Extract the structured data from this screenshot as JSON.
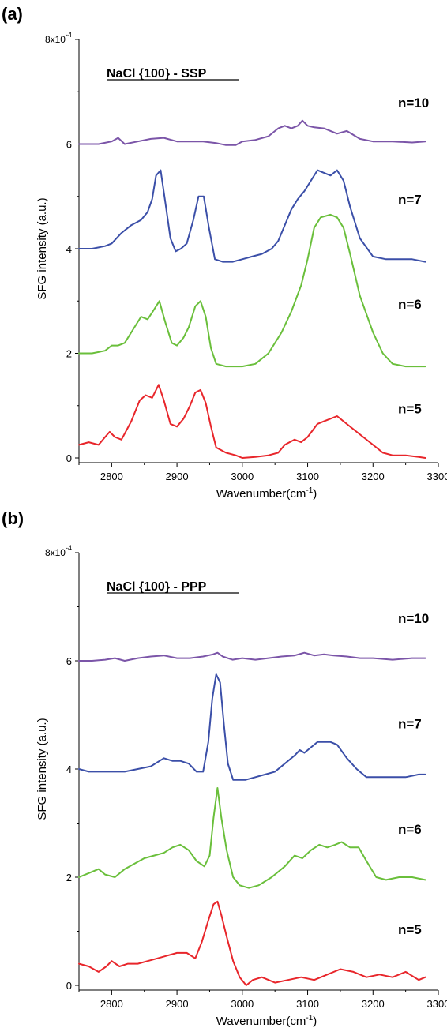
{
  "chart_data": [
    {
      "panel_label": "(a)",
      "title": "NaCl {100} - SSP",
      "type": "line",
      "xlabel_base": "Wavenumber(cm",
      "xlabel_sup": "-1",
      "xlabel_end": ")",
      "ylabel": "SFG intensity (a.u.)",
      "xlim": [
        2750,
        3300
      ],
      "ylim": [
        0,
        8
      ],
      "y_multiplier_label": "8x10",
      "y_multiplier_exp": "-4",
      "xticks": [
        2800,
        2900,
        3000,
        3100,
        3200,
        3300
      ],
      "yticks": [
        0,
        2,
        4,
        6
      ],
      "series": [
        {
          "name": "n=5",
          "color": "#e8262b",
          "x": [
            2750,
            2765,
            2780,
            2790,
            2797,
            2805,
            2815,
            2830,
            2843,
            2852,
            2862,
            2872,
            2880,
            2890,
            2900,
            2910,
            2920,
            2928,
            2936,
            2944,
            2952,
            2960,
            2975,
            2990,
            3000,
            3020,
            3040,
            3055,
            3065,
            3080,
            3090,
            3100,
            3115,
            3125,
            3135,
            3145,
            3155,
            3170,
            3185,
            3200,
            3215,
            3230,
            3250,
            3270,
            3280
          ],
          "y": [
            0.25,
            0.3,
            0.25,
            0.4,
            0.5,
            0.4,
            0.35,
            0.7,
            1.1,
            1.2,
            1.15,
            1.4,
            1.1,
            0.65,
            0.6,
            0.75,
            1.0,
            1.25,
            1.3,
            1.05,
            0.6,
            0.2,
            0.1,
            0.05,
            0.0,
            0.02,
            0.05,
            0.1,
            0.25,
            0.35,
            0.3,
            0.4,
            0.65,
            0.7,
            0.75,
            0.8,
            0.7,
            0.55,
            0.4,
            0.25,
            0.1,
            0.05,
            0.05,
            0.02,
            0.0
          ]
        },
        {
          "name": "n=6",
          "color": "#6abf3b",
          "x": [
            2750,
            2770,
            2790,
            2800,
            2810,
            2820,
            2830,
            2845,
            2855,
            2863,
            2873,
            2882,
            2892,
            2900,
            2910,
            2918,
            2928,
            2936,
            2944,
            2952,
            2960,
            2975,
            3000,
            3020,
            3040,
            3060,
            3075,
            3090,
            3100,
            3110,
            3120,
            3135,
            3145,
            3155,
            3165,
            3180,
            3200,
            3215,
            3230,
            3250,
            3265,
            3280
          ],
          "y": [
            2.0,
            2.0,
            2.05,
            2.15,
            2.15,
            2.2,
            2.4,
            2.7,
            2.65,
            2.8,
            3.0,
            2.6,
            2.2,
            2.15,
            2.3,
            2.5,
            2.9,
            3.0,
            2.7,
            2.1,
            1.8,
            1.75,
            1.75,
            1.8,
            2.0,
            2.4,
            2.8,
            3.3,
            3.8,
            4.4,
            4.6,
            4.65,
            4.6,
            4.4,
            3.9,
            3.1,
            2.4,
            2.0,
            1.8,
            1.75,
            1.75,
            1.75
          ]
        },
        {
          "name": "n=7",
          "color": "#3b4fa8",
          "x": [
            2750,
            2770,
            2790,
            2800,
            2815,
            2830,
            2845,
            2855,
            2862,
            2868,
            2875,
            2882,
            2890,
            2898,
            2906,
            2915,
            2925,
            2933,
            2941,
            2949,
            2958,
            2970,
            2985,
            3000,
            3015,
            3030,
            3045,
            3055,
            3065,
            3075,
            3085,
            3095,
            3105,
            3115,
            3125,
            3135,
            3145,
            3155,
            3165,
            3180,
            3200,
            3220,
            3240,
            3260,
            3280
          ],
          "y": [
            4.0,
            4.0,
            4.05,
            4.1,
            4.3,
            4.45,
            4.55,
            4.7,
            4.95,
            5.4,
            5.5,
            4.9,
            4.2,
            3.95,
            4.0,
            4.1,
            4.55,
            5.0,
            5.0,
            4.4,
            3.8,
            3.75,
            3.75,
            3.8,
            3.85,
            3.9,
            4.0,
            4.15,
            4.45,
            4.75,
            4.95,
            5.1,
            5.3,
            5.5,
            5.45,
            5.4,
            5.5,
            5.3,
            4.8,
            4.2,
            3.85,
            3.8,
            3.8,
            3.8,
            3.75
          ]
        },
        {
          "name": "n=10",
          "color": "#7b55a8",
          "x": [
            2750,
            2780,
            2800,
            2810,
            2820,
            2840,
            2860,
            2880,
            2900,
            2920,
            2940,
            2960,
            2975,
            2990,
            3000,
            3020,
            3040,
            3055,
            3065,
            3075,
            3085,
            3092,
            3100,
            3110,
            3125,
            3135,
            3145,
            3160,
            3180,
            3200,
            3230,
            3260,
            3280
          ],
          "y": [
            6.0,
            6.0,
            6.05,
            6.12,
            6.0,
            6.05,
            6.1,
            6.12,
            6.05,
            6.05,
            6.05,
            6.02,
            5.98,
            5.98,
            6.05,
            6.08,
            6.15,
            6.3,
            6.35,
            6.3,
            6.35,
            6.45,
            6.35,
            6.32,
            6.3,
            6.25,
            6.2,
            6.25,
            6.1,
            6.05,
            6.05,
            6.03,
            6.05
          ]
        }
      ]
    },
    {
      "panel_label": "(b)",
      "title": "NaCl {100} - PPP",
      "type": "line",
      "xlabel_base": "Wavenumber(cm",
      "xlabel_sup": "-1",
      "xlabel_end": ")",
      "ylabel": "SFG intensity (a.u.)",
      "xlim": [
        2750,
        3300
      ],
      "ylim": [
        0,
        8
      ],
      "y_multiplier_label": "8x10",
      "y_multiplier_exp": "-4",
      "xticks": [
        2800,
        2900,
        3000,
        3100,
        3200,
        3300
      ],
      "yticks": [
        0,
        2,
        4,
        6
      ],
      "series": [
        {
          "name": "n=5",
          "color": "#e8262b",
          "x": [
            2750,
            2765,
            2780,
            2792,
            2800,
            2812,
            2825,
            2840,
            2855,
            2870,
            2885,
            2900,
            2915,
            2928,
            2938,
            2948,
            2956,
            2962,
            2968,
            2976,
            2986,
            2996,
            3006,
            3016,
            3030,
            3050,
            3070,
            3090,
            3110,
            3130,
            3150,
            3170,
            3190,
            3210,
            3230,
            3250,
            3270,
            3280
          ],
          "y": [
            0.4,
            0.35,
            0.25,
            0.35,
            0.45,
            0.35,
            0.4,
            0.4,
            0.45,
            0.5,
            0.55,
            0.6,
            0.6,
            0.5,
            0.8,
            1.2,
            1.5,
            1.55,
            1.3,
            0.9,
            0.45,
            0.15,
            0.0,
            0.1,
            0.15,
            0.05,
            0.1,
            0.15,
            0.1,
            0.2,
            0.3,
            0.25,
            0.15,
            0.2,
            0.15,
            0.25,
            0.1,
            0.15
          ]
        },
        {
          "name": "n=6",
          "color": "#6abf3b",
          "x": [
            2750,
            2760,
            2770,
            2780,
            2790,
            2805,
            2820,
            2835,
            2850,
            2865,
            2880,
            2893,
            2905,
            2918,
            2930,
            2942,
            2950,
            2956,
            2962,
            2968,
            2976,
            2986,
            2996,
            3010,
            3025,
            3045,
            3065,
            3080,
            3092,
            3105,
            3118,
            3130,
            3142,
            3152,
            3165,
            3178,
            3190,
            3205,
            3220,
            3240,
            3260,
            3280
          ],
          "y": [
            2.0,
            2.05,
            2.1,
            2.15,
            2.05,
            2.0,
            2.15,
            2.25,
            2.35,
            2.4,
            2.45,
            2.55,
            2.6,
            2.5,
            2.3,
            2.2,
            2.4,
            3.1,
            3.65,
            3.1,
            2.5,
            2.0,
            1.85,
            1.8,
            1.85,
            2.0,
            2.2,
            2.4,
            2.35,
            2.5,
            2.6,
            2.55,
            2.6,
            2.65,
            2.55,
            2.55,
            2.3,
            2.0,
            1.95,
            2.0,
            2.0,
            1.95
          ]
        },
        {
          "name": "n=7",
          "color": "#3b4fa8",
          "x": [
            2750,
            2765,
            2780,
            2800,
            2820,
            2840,
            2860,
            2880,
            2893,
            2905,
            2918,
            2930,
            2940,
            2948,
            2954,
            2960,
            2966,
            2972,
            2978,
            2986,
            2994,
            3005,
            3020,
            3035,
            3050,
            3065,
            3080,
            3088,
            3095,
            3105,
            3115,
            3125,
            3135,
            3145,
            3160,
            3175,
            3190,
            3210,
            3230,
            3250,
            3270,
            3280
          ],
          "y": [
            4.0,
            3.95,
            3.95,
            3.95,
            3.95,
            4.0,
            4.05,
            4.2,
            4.15,
            4.15,
            4.1,
            3.95,
            3.95,
            4.5,
            5.3,
            5.75,
            5.6,
            4.8,
            4.1,
            3.8,
            3.8,
            3.8,
            3.85,
            3.9,
            3.95,
            4.1,
            4.25,
            4.35,
            4.3,
            4.4,
            4.5,
            4.5,
            4.5,
            4.45,
            4.2,
            4.0,
            3.85,
            3.85,
            3.85,
            3.85,
            3.9,
            3.9
          ]
        },
        {
          "name": "n=10",
          "color": "#7b55a8",
          "x": [
            2750,
            2770,
            2790,
            2805,
            2820,
            2840,
            2860,
            2880,
            2900,
            2920,
            2940,
            2955,
            2962,
            2970,
            2985,
            3000,
            3020,
            3040,
            3060,
            3080,
            3095,
            3110,
            3125,
            3140,
            3160,
            3180,
            3200,
            3230,
            3260,
            3280
          ],
          "y": [
            6.0,
            6.0,
            6.02,
            6.05,
            6.0,
            6.05,
            6.08,
            6.1,
            6.05,
            6.05,
            6.08,
            6.12,
            6.15,
            6.08,
            6.02,
            6.05,
            6.02,
            6.05,
            6.08,
            6.1,
            6.15,
            6.1,
            6.12,
            6.1,
            6.08,
            6.05,
            6.05,
            6.02,
            6.05,
            6.05
          ]
        }
      ]
    }
  ]
}
